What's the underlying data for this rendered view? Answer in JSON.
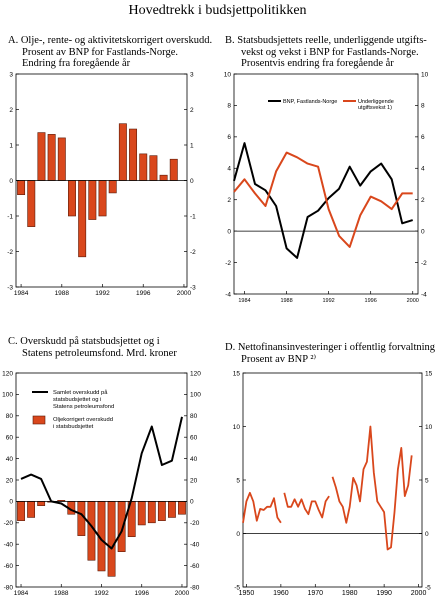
{
  "page_title": "Hovedtrekk i budsjettpolitikken",
  "colors": {
    "bar": "#d9471c",
    "bar_stroke": "#5a1a08",
    "line_red": "#d9471c",
    "line_black": "#000000"
  },
  "chart_data": [
    {
      "id": "A",
      "type": "bar",
      "title_lines": [
        "A.  Olje-, rente- og aktivitetskorrigert overskudd.",
        "Prosent av BNP for Fastlands-Norge.",
        "Endring fra foregående år"
      ],
      "x": [
        1984,
        1985,
        1986,
        1987,
        1988,
        1989,
        1990,
        1991,
        1992,
        1993,
        1994,
        1995,
        1996,
        1997,
        1998,
        1999
      ],
      "values": [
        -0.4,
        -1.3,
        1.35,
        1.3,
        1.2,
        -1.0,
        -2.15,
        -1.1,
        -1.0,
        -0.35,
        1.6,
        1.45,
        0.75,
        0.7,
        0.15,
        0.6
      ],
      "ylim": [
        -3,
        3
      ],
      "y_ticks": [
        -3,
        -2,
        -1,
        0,
        1,
        2,
        3
      ],
      "x_tick_labels": [
        "1984",
        "1988",
        "1992",
        "1996",
        "2000"
      ],
      "grid": false
    },
    {
      "id": "B",
      "type": "line",
      "title_lines": [
        "B.  Statsbudsjettets reelle, underliggende utgifts-",
        "vekst og vekst i BNP for Fastlands-Norge.",
        "Prosentvis endring fra foregående år"
      ],
      "x": [
        1983,
        1984,
        1985,
        1986,
        1987,
        1988,
        1989,
        1990,
        1991,
        1992,
        1993,
        1994,
        1995,
        1996,
        1997,
        1998,
        1999,
        2000
      ],
      "series": [
        {
          "name": "BNP, Fastlands-Norge",
          "color": "line_black",
          "values": [
            3.2,
            5.6,
            3.0,
            2.6,
            1.6,
            -1.1,
            -1.7,
            0.9,
            1.3,
            2.1,
            2.7,
            4.1,
            2.9,
            3.8,
            4.3,
            3.3,
            0.5,
            0.7
          ]
        },
        {
          "name": "Underliggende utgiftsvekst 1)",
          "color": "line_red",
          "values": [
            2.5,
            3.3,
            2.4,
            1.6,
            3.8,
            5.0,
            4.7,
            4.3,
            4.1,
            1.4,
            -0.3,
            -1.0,
            1.0,
            2.2,
            1.9,
            1.4,
            2.4,
            2.4
          ]
        }
      ],
      "ylim": [
        -4,
        10
      ],
      "y_ticks": [
        -4,
        -2,
        0,
        2,
        4,
        6,
        8,
        10
      ],
      "x_tick_labels": [
        "1984",
        "1988",
        "1992",
        "1996",
        "2000"
      ],
      "legend_placement": "top",
      "grid": false
    },
    {
      "id": "C",
      "type": "bar+line",
      "title_lines": [
        "C.  Overskudd på statsbudsjettet og i",
        "Statens petroleumsfond. Mrd.  kroner"
      ],
      "x": [
        1984,
        1985,
        1986,
        1987,
        1988,
        1989,
        1990,
        1991,
        1992,
        1993,
        1994,
        1995,
        1996,
        1997,
        1998,
        1999,
        2000
      ],
      "bar_series": {
        "name": "Oljekorrigert overskudd i statsbudsjettet",
        "values": [
          -18,
          -15,
          -4,
          0,
          1,
          -12,
          -32,
          -55,
          -65,
          -70,
          -47,
          -33,
          -22,
          -20,
          -18,
          -15,
          -12
        ]
      },
      "line_series": {
        "name": "Samlet overskudd på statsbudsjettet og i Statens petroleumsfond",
        "values": [
          21,
          25,
          21,
          0,
          -2,
          -8,
          -12,
          -23,
          -36,
          -44,
          -28,
          3,
          45,
          70,
          34,
          38,
          79
        ]
      },
      "legend_line_text": [
        "Samlet overskudd på",
        "statsbudsjettet og i",
        "Statens petroleumsfond"
      ],
      "legend_bar_text": [
        "Oljekorrigert overskudd",
        "i statsbudsjettet"
      ],
      "ylim": [
        -80,
        120
      ],
      "y_ticks": [
        -80,
        -60,
        -40,
        -20,
        0,
        20,
        40,
        60,
        80,
        100,
        120
      ],
      "y_tick_labels_right": [
        "-80",
        "-60",
        "-40",
        "-20",
        "0",
        "20",
        "40",
        "60",
        "80",
        "100",
        "120"
      ],
      "x_tick_labels": [
        "1984",
        "1988",
        "1992",
        "1996",
        "2000"
      ],
      "grid": false
    },
    {
      "id": "D",
      "type": "line",
      "title_lines": [
        "D.  Nettofinansinvesteringer i offentlig forvaltning.",
        "Prosent av BNP ²⁾"
      ],
      "x_start": 1949,
      "segments": [
        {
          "start": 1949,
          "values": [
            1.0,
            3.0,
            3.8,
            3.0,
            1.2,
            2.3,
            2.2,
            2.5,
            2.5,
            3.3,
            1.5,
            1.0
          ]
        },
        {
          "start": 1961,
          "values": [
            3.8,
            2.5,
            2.5,
            3.2,
            2.5,
            3.2,
            2.3,
            1.8,
            3.0,
            3.0,
            2.2,
            1.5,
            3.0,
            3.5
          ]
        },
        {
          "start": 1975,
          "values": [
            5.3,
            4.3,
            3.0,
            2.5,
            1.0,
            2.5,
            5.2,
            4.5,
            3.0,
            6.0,
            6.7,
            10.0,
            5.7,
            3.0,
            2.5,
            2.0,
            -1.5,
            -1.3,
            2.0,
            6.0,
            8.0,
            3.5,
            4.5,
            7.3
          ]
        }
      ],
      "ylim": [
        -5,
        15
      ],
      "y_ticks": [
        -5,
        0,
        5,
        10,
        15
      ],
      "x_tick_labels": [
        "1950",
        "1960",
        "1970",
        "1980",
        "1990",
        "2000"
      ],
      "grid": false
    }
  ]
}
